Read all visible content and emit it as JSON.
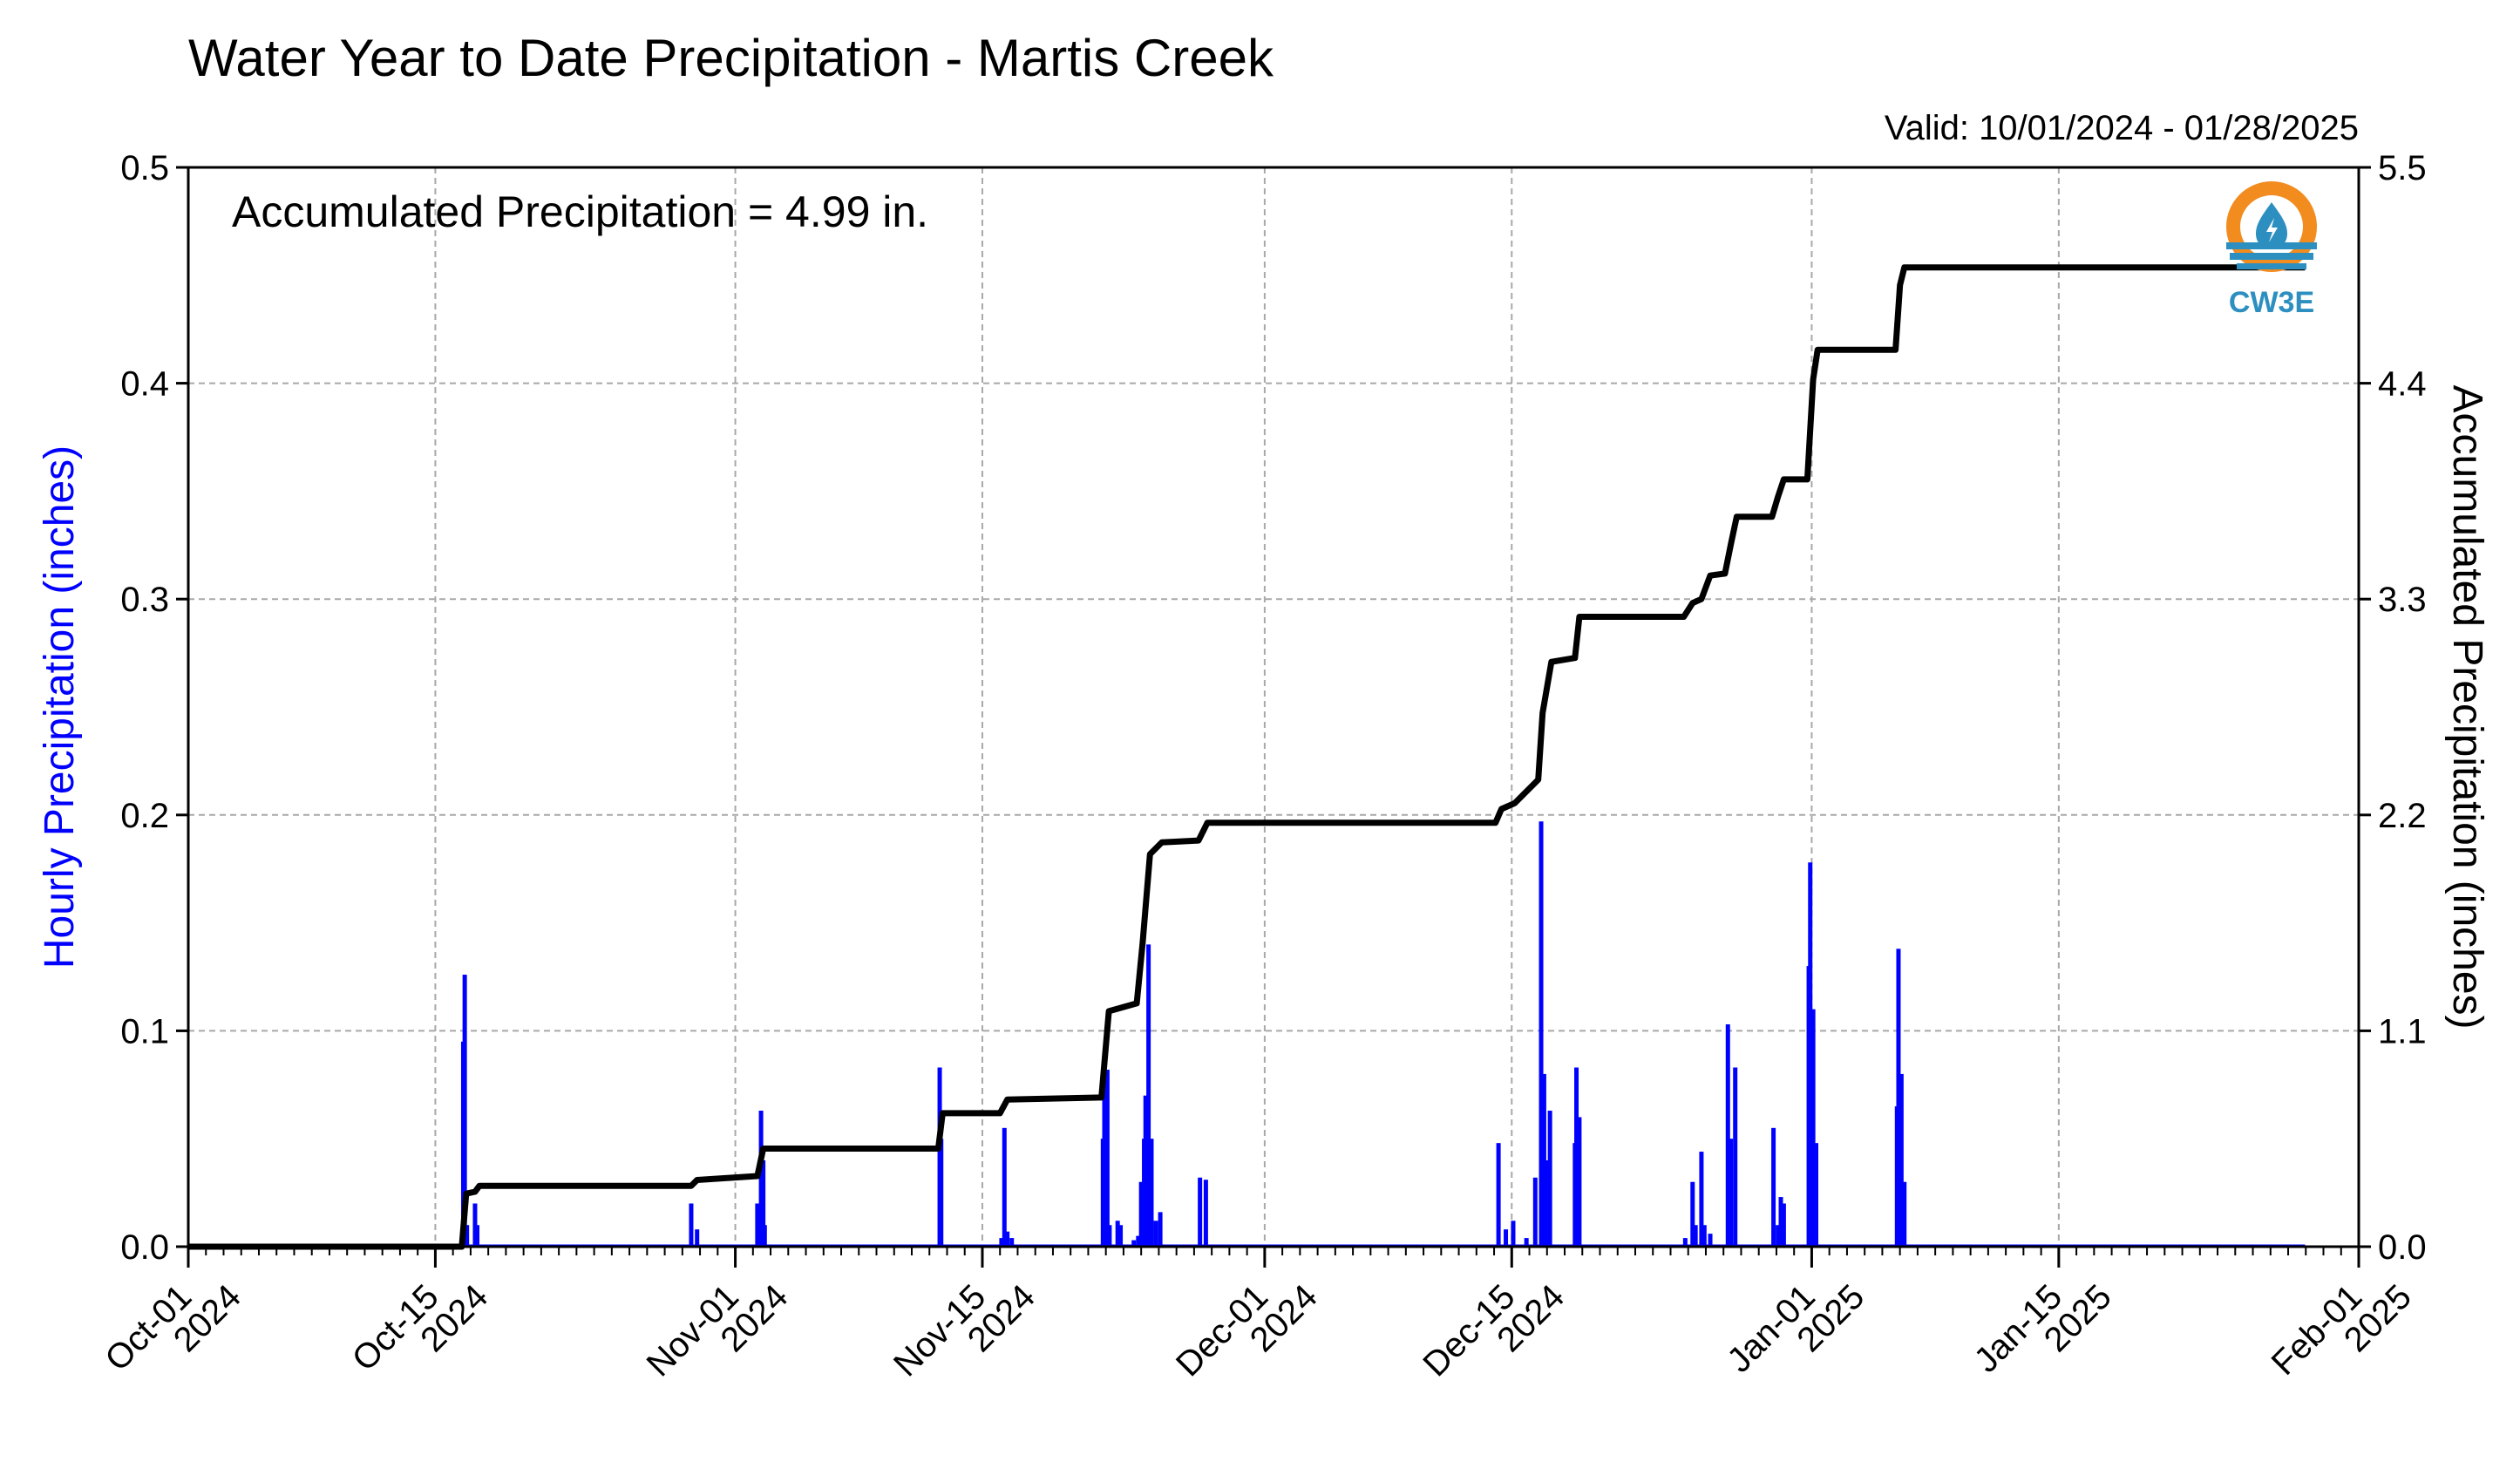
{
  "chart_data": {
    "type": "bar+line",
    "title": "Water Year to Date Precipitation - Martis Creek",
    "subtitle": "Valid: 10/01/2024 - 01/28/2025",
    "annotation": "Accumulated Precipitation = 4.99 in.",
    "ylabel_left": "Hourly Precipitation (inches)",
    "ylabel_right": "Accumulated Precipitation (inches)",
    "ylim_left": [
      0,
      0.5
    ],
    "ylim_right": [
      0,
      5.5
    ],
    "xlim": [
      "2024-10-01",
      "2025-02-01"
    ],
    "grid": true,
    "left_ticks": [
      "0.0",
      "0.1",
      "0.2",
      "0.3",
      "0.4",
      "0.5"
    ],
    "right_ticks": [
      "0.0",
      "1.1",
      "2.2",
      "3.3",
      "4.4",
      "5.5"
    ],
    "x_ticks": [
      {
        "date": "2024-10-01",
        "line1": "Oct-01",
        "line2": "2024"
      },
      {
        "date": "2024-10-15",
        "line1": "Oct-15",
        "line2": "2024"
      },
      {
        "date": "2024-11-01",
        "line1": "Nov-01",
        "line2": "2024"
      },
      {
        "date": "2024-11-15",
        "line1": "Nov-15",
        "line2": "2024"
      },
      {
        "date": "2024-12-01",
        "line1": "Dec-01",
        "line2": "2024"
      },
      {
        "date": "2024-12-15",
        "line1": "Dec-15",
        "line2": "2024"
      },
      {
        "date": "2025-01-01",
        "line1": "Jan-01",
        "line2": "2025"
      },
      {
        "date": "2025-01-15",
        "line1": "Jan-15",
        "line2": "2025"
      },
      {
        "date": "2025-02-01",
        "line1": "Feb-01",
        "line2": "2025"
      }
    ],
    "hourly_series": {
      "name": "Hourly Precipitation",
      "color": "#0000ff",
      "points": [
        {
          "x": "2024-10-16T14:00",
          "y": 0.095
        },
        {
          "x": "2024-10-16T16:00",
          "y": 0.126
        },
        {
          "x": "2024-10-16T19:00",
          "y": 0.01
        },
        {
          "x": "2024-10-17T06:00",
          "y": 0.02
        },
        {
          "x": "2024-10-17T09:00",
          "y": 0.01
        },
        {
          "x": "2024-10-29T12:00",
          "y": 0.02
        },
        {
          "x": "2024-10-29T20:00",
          "y": 0.008
        },
        {
          "x": "2024-11-02T06:00",
          "y": 0.02
        },
        {
          "x": "2024-11-02T11:00",
          "y": 0.063
        },
        {
          "x": "2024-11-02T14:00",
          "y": 0.04
        },
        {
          "x": "2024-11-02T16:00",
          "y": 0.01
        },
        {
          "x": "2024-11-12T14:00",
          "y": 0.083
        },
        {
          "x": "2024-11-12T16:00",
          "y": 0.05
        },
        {
          "x": "2024-11-16T02:00",
          "y": 0.004
        },
        {
          "x": "2024-11-16T06:00",
          "y": 0.055
        },
        {
          "x": "2024-11-16T10:00",
          "y": 0.007
        },
        {
          "x": "2024-11-16T16:00",
          "y": 0.004
        },
        {
          "x": "2024-11-21T20:00",
          "y": 0.05
        },
        {
          "x": "2024-11-21T22:00",
          "y": 0.075
        },
        {
          "x": "2024-11-22T02:00",
          "y": 0.082
        },
        {
          "x": "2024-11-22T05:00",
          "y": 0.01
        },
        {
          "x": "2024-11-22T16:00",
          "y": 0.012
        },
        {
          "x": "2024-11-22T20:00",
          "y": 0.01
        },
        {
          "x": "2024-11-23T14:00",
          "y": 0.003
        },
        {
          "x": "2024-11-23T20:00",
          "y": 0.005
        },
        {
          "x": "2024-11-24T00:00",
          "y": 0.03
        },
        {
          "x": "2024-11-24T04:00",
          "y": 0.05
        },
        {
          "x": "2024-11-24T06:00",
          "y": 0.07
        },
        {
          "x": "2024-11-24T10:00",
          "y": 0.14
        },
        {
          "x": "2024-11-24T14:00",
          "y": 0.05
        },
        {
          "x": "2024-11-24T20:00",
          "y": 0.012
        },
        {
          "x": "2024-11-25T02:00",
          "y": 0.016
        },
        {
          "x": "2024-11-27T08:00",
          "y": 0.032
        },
        {
          "x": "2024-11-27T16:00",
          "y": 0.031
        },
        {
          "x": "2024-12-14T06:00",
          "y": 0.048
        },
        {
          "x": "2024-12-14T16:00",
          "y": 0.008
        },
        {
          "x": "2024-12-15T02:00",
          "y": 0.012
        },
        {
          "x": "2024-12-15T20:00",
          "y": 0.004
        },
        {
          "x": "2024-12-16T08:00",
          "y": 0.032
        },
        {
          "x": "2024-12-16T16:00",
          "y": 0.197
        },
        {
          "x": "2024-12-16T20:00",
          "y": 0.08
        },
        {
          "x": "2024-12-17T00:00",
          "y": 0.04
        },
        {
          "x": "2024-12-17T04:00",
          "y": 0.063
        },
        {
          "x": "2024-12-18T14:00",
          "y": 0.048
        },
        {
          "x": "2024-12-18T16:00",
          "y": 0.083
        },
        {
          "x": "2024-12-18T20:00",
          "y": 0.06
        },
        {
          "x": "2024-12-24T20:00",
          "y": 0.004
        },
        {
          "x": "2024-12-25T06:00",
          "y": 0.03
        },
        {
          "x": "2024-12-25T10:00",
          "y": 0.01
        },
        {
          "x": "2024-12-25T18:00",
          "y": 0.044
        },
        {
          "x": "2024-12-25T22:00",
          "y": 0.01
        },
        {
          "x": "2024-12-26T06:00",
          "y": 0.006
        },
        {
          "x": "2024-12-27T06:00",
          "y": 0.103
        },
        {
          "x": "2024-12-27T10:00",
          "y": 0.05
        },
        {
          "x": "2024-12-27T16:00",
          "y": 0.083
        },
        {
          "x": "2024-12-29T20:00",
          "y": 0.055
        },
        {
          "x": "2024-12-30T02:00",
          "y": 0.01
        },
        {
          "x": "2024-12-30T06:00",
          "y": 0.023
        },
        {
          "x": "2024-12-30T10:00",
          "y": 0.02
        },
        {
          "x": "2024-12-31T20:00",
          "y": 0.13
        },
        {
          "x": "2024-12-31T22:00",
          "y": 0.178
        },
        {
          "x": "2025-01-01T02:00",
          "y": 0.11
        },
        {
          "x": "2025-01-01T06:00",
          "y": 0.048
        },
        {
          "x": "2025-01-05T20:00",
          "y": 0.065
        },
        {
          "x": "2025-01-05T22:00",
          "y": 0.138
        },
        {
          "x": "2025-01-06T02:00",
          "y": 0.08
        },
        {
          "x": "2025-01-06T06:00",
          "y": 0.03
        }
      ]
    },
    "accumulated_series": {
      "name": "Accumulated Precipitation",
      "color": "#000000",
      "points": [
        {
          "x": "2024-10-01T00:00",
          "y": 0.0
        },
        {
          "x": "2024-10-16T12:00",
          "y": 0.0
        },
        {
          "x": "2024-10-16T18:00",
          "y": 0.27
        },
        {
          "x": "2024-10-17T06:00",
          "y": 0.28
        },
        {
          "x": "2024-10-17T12:00",
          "y": 0.31
        },
        {
          "x": "2024-10-29T12:00",
          "y": 0.31
        },
        {
          "x": "2024-10-29T20:00",
          "y": 0.34
        },
        {
          "x": "2024-11-02T06:00",
          "y": 0.36
        },
        {
          "x": "2024-11-02T14:00",
          "y": 0.5
        },
        {
          "x": "2024-11-12T12:00",
          "y": 0.5
        },
        {
          "x": "2024-11-12T18:00",
          "y": 0.68
        },
        {
          "x": "2024-11-16T00:00",
          "y": 0.68
        },
        {
          "x": "2024-11-16T10:00",
          "y": 0.75
        },
        {
          "x": "2024-11-21T18:00",
          "y": 0.76
        },
        {
          "x": "2024-11-22T04:00",
          "y": 1.2
        },
        {
          "x": "2024-11-23T18:00",
          "y": 1.24
        },
        {
          "x": "2024-11-24T02:00",
          "y": 1.55
        },
        {
          "x": "2024-11-24T12:00",
          "y": 2.0
        },
        {
          "x": "2024-11-25T04:00",
          "y": 2.06
        },
        {
          "x": "2024-11-27T06:00",
          "y": 2.07
        },
        {
          "x": "2024-11-27T18:00",
          "y": 2.16
        },
        {
          "x": "2024-12-14T02:00",
          "y": 2.16
        },
        {
          "x": "2024-12-14T10:00",
          "y": 2.23
        },
        {
          "x": "2024-12-15T04:00",
          "y": 2.26
        },
        {
          "x": "2024-12-16T12:00",
          "y": 2.38
        },
        {
          "x": "2024-12-16T18:00",
          "y": 2.72
        },
        {
          "x": "2024-12-17T06:00",
          "y": 2.98
        },
        {
          "x": "2024-12-18T14:00",
          "y": 3.0
        },
        {
          "x": "2024-12-18T20:00",
          "y": 3.21
        },
        {
          "x": "2024-12-24T18:00",
          "y": 3.21
        },
        {
          "x": "2024-12-25T06:00",
          "y": 3.28
        },
        {
          "x": "2024-12-25T18:00",
          "y": 3.3
        },
        {
          "x": "2024-12-26T06:00",
          "y": 3.42
        },
        {
          "x": "2024-12-27T02:00",
          "y": 3.43
        },
        {
          "x": "2024-12-27T10:00",
          "y": 3.58
        },
        {
          "x": "2024-12-27T18:00",
          "y": 3.72
        },
        {
          "x": "2024-12-29T18:00",
          "y": 3.72
        },
        {
          "x": "2024-12-30T02:00",
          "y": 3.82
        },
        {
          "x": "2024-12-30T10:00",
          "y": 3.91
        },
        {
          "x": "2024-12-31T18:00",
          "y": 3.91
        },
        {
          "x": "2025-01-01T02:00",
          "y": 4.42
        },
        {
          "x": "2025-01-01T08:00",
          "y": 4.57
        },
        {
          "x": "2025-01-05T18:00",
          "y": 4.57
        },
        {
          "x": "2025-01-06T00:00",
          "y": 4.9
        },
        {
          "x": "2025-01-06T06:00",
          "y": 4.99
        },
        {
          "x": "2025-01-28T23:00",
          "y": 4.99
        }
      ]
    }
  },
  "logo": {
    "text": "CW3E",
    "colors": {
      "sun": "#f28c1e",
      "water": "#2c8fc0"
    }
  }
}
